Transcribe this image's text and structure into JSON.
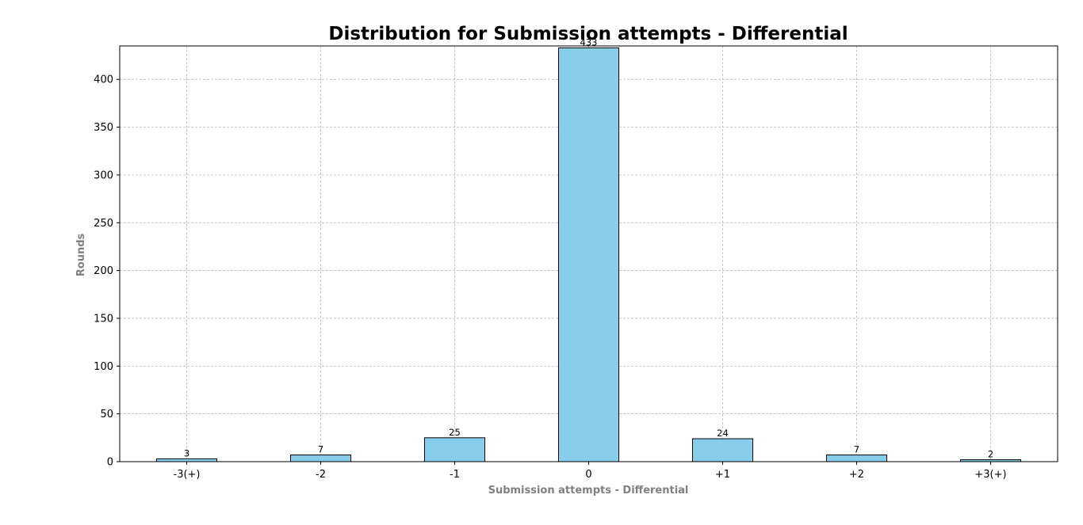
{
  "chart_data": {
    "type": "bar",
    "title": "Distribution for Submission attempts - Differential",
    "xlabel": "Submission attempts - Differential",
    "ylabel": "Rounds",
    "categories": [
      "-3(+)",
      "-2",
      "-1",
      "0",
      "+1",
      "+2",
      "+3(+)"
    ],
    "values": [
      3,
      7,
      25,
      433,
      24,
      7,
      2
    ],
    "ylim": [
      0,
      435
    ],
    "yticks": [
      0,
      50,
      100,
      150,
      200,
      250,
      300,
      350,
      400
    ],
    "grid": true,
    "legend": "none",
    "colors": {
      "bar": "#87ceeb",
      "edge": "#000000",
      "grid": "#b0b0b0",
      "axis_label": "#808080"
    }
  }
}
